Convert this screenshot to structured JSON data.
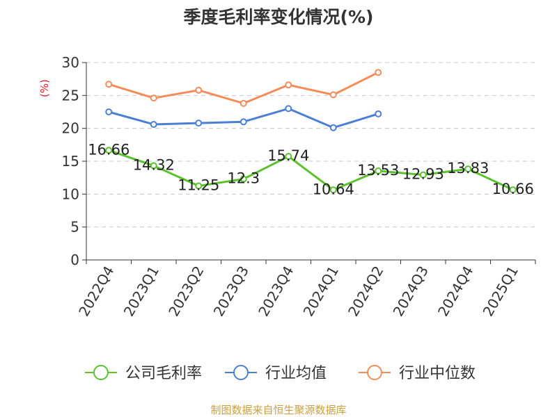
{
  "chart_data": {
    "type": "line",
    "title": "季度毛利率变化情况(%)",
    "ylabel": "(%)",
    "xlabel": "",
    "ylim": [
      0,
      30
    ],
    "yticks": [
      0,
      5,
      10,
      15,
      20,
      25,
      30
    ],
    "grid": true,
    "legend_position": "bottom",
    "categories": [
      "2022Q4",
      "2023Q1",
      "2023Q2",
      "2023Q3",
      "2023Q4",
      "2024Q1",
      "2024Q2",
      "2024Q3",
      "2024Q4",
      "2025Q1"
    ],
    "series": [
      {
        "name": "公司毛利率",
        "color": "#5cc12e",
        "values": [
          16.66,
          14.32,
          11.25,
          12.3,
          15.74,
          10.64,
          13.53,
          12.93,
          13.83,
          10.66
        ],
        "labels": [
          "16.66",
          "14.32",
          "11.25",
          "12.3",
          "15.74",
          "10.64",
          "13.53",
          "12.93",
          "13.83",
          "10.66"
        ]
      },
      {
        "name": "行业均值",
        "color": "#4a7fd4",
        "values": [
          22.5,
          20.6,
          20.8,
          21.0,
          23.0,
          20.1,
          22.2,
          null,
          null,
          null
        ]
      },
      {
        "name": "行业中位数",
        "color": "#f48c5a",
        "values": [
          26.7,
          24.6,
          25.8,
          23.8,
          26.6,
          25.1,
          28.5,
          null,
          null,
          null
        ]
      }
    ],
    "source": "制图数据来自恒生聚源数据库"
  }
}
